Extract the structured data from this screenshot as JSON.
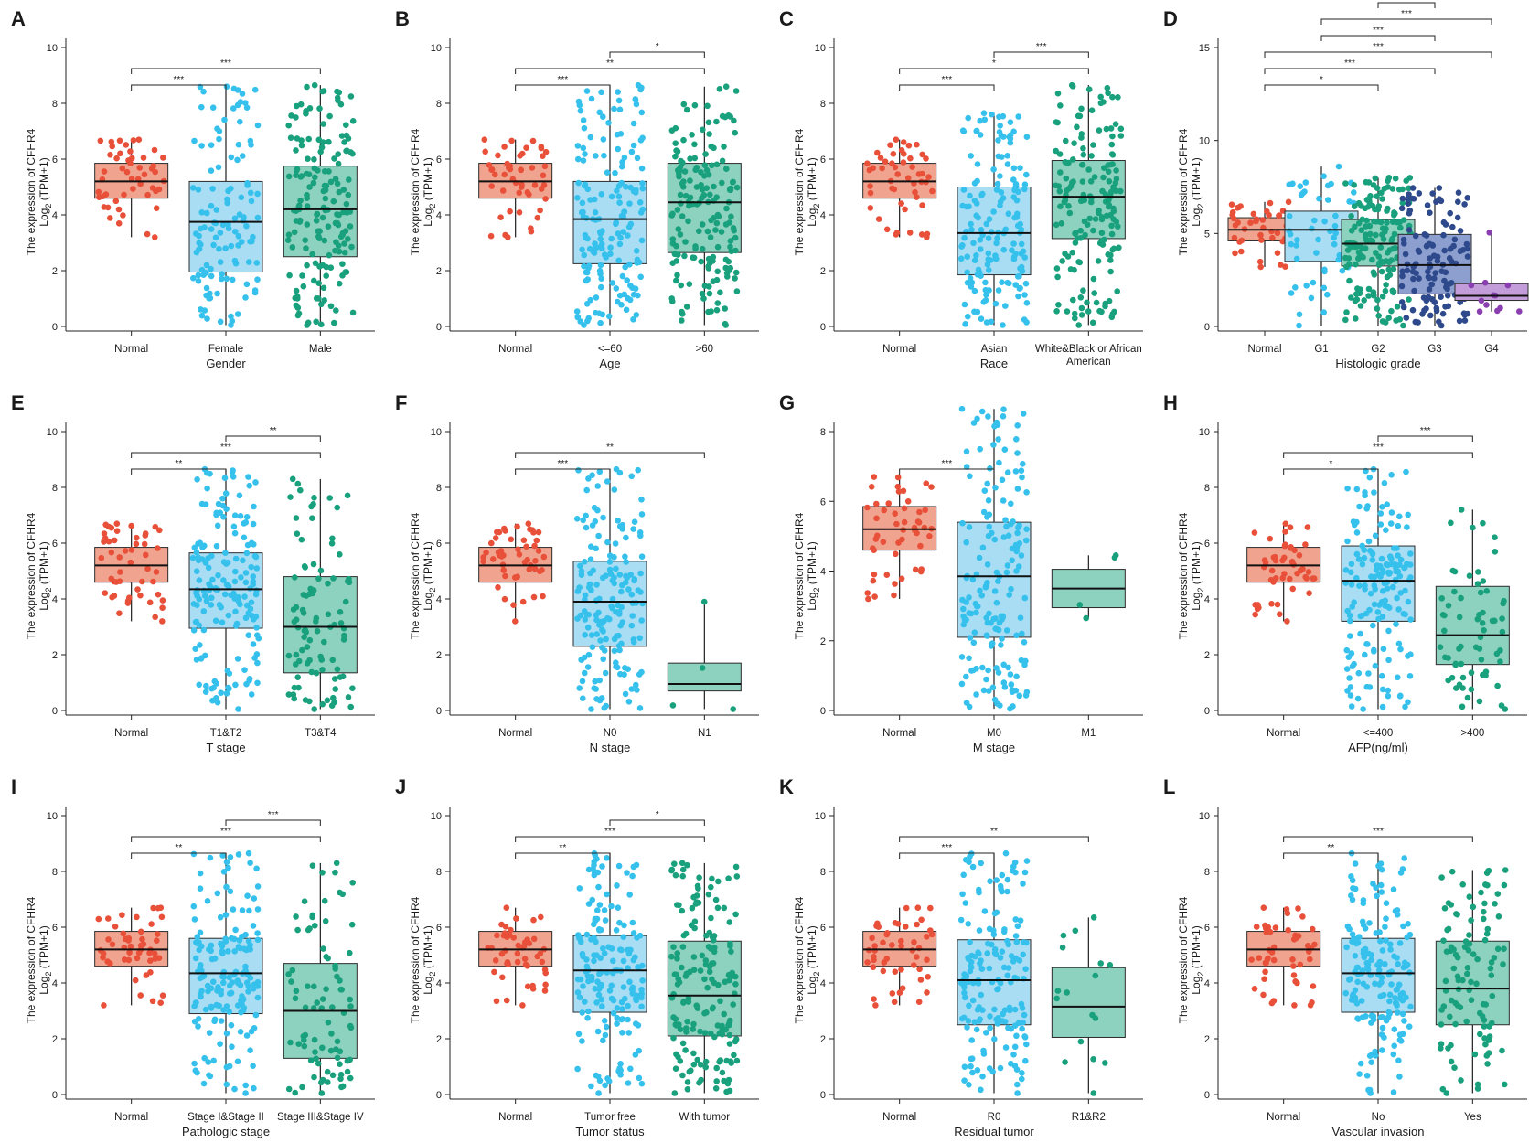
{
  "ylabel": {
    "line1": "The expression of CFHR4",
    "line2_prefix": "Log",
    "line2_sub": "2",
    "line2_suffix": " (TPM+1)"
  },
  "colors": {
    "Normal": "#e8503a",
    "Normal_box": "#f0a48f",
    "blue": "#36c1ec",
    "blue_box": "#a8ddf4",
    "green": "#19a07c",
    "green_box": "#8dd1bf",
    "navy": "#2e4a8c",
    "navy_box": "#8c9fcf",
    "purple": "#8a3fb0",
    "purple_box": "#c39dd9"
  },
  "chart_data": [
    {
      "panel": "A",
      "type": "box",
      "xlabel": "Gender",
      "ylim": [
        0,
        10
      ],
      "yticks": [
        0,
        2,
        4,
        6,
        8,
        10
      ],
      "groups": [
        {
          "name": "Normal",
          "color": "Normal",
          "n": 50,
          "min": 3.2,
          "q1": 4.6,
          "median": 5.2,
          "q3": 5.85,
          "max": 6.7
        },
        {
          "name": "Female",
          "color": "blue",
          "n": 120,
          "min": 0.05,
          "q1": 1.95,
          "median": 3.75,
          "q3": 5.2,
          "max": 8.6
        },
        {
          "name": "Male",
          "color": "green",
          "n": 250,
          "min": 0.05,
          "q1": 2.5,
          "median": 4.2,
          "q3": 5.75,
          "max": 8.65
        }
      ],
      "sig": [
        {
          "a": 0,
          "b": 1,
          "level": 0,
          "label": "***"
        },
        {
          "a": 0,
          "b": 2,
          "level": 1,
          "label": "***"
        }
      ]
    },
    {
      "panel": "B",
      "type": "box",
      "xlabel": "Age",
      "ylim": [
        0,
        10
      ],
      "yticks": [
        0,
        2,
        4,
        6,
        8,
        10
      ],
      "groups": [
        {
          "name": "Normal",
          "color": "Normal",
          "n": 50,
          "min": 3.2,
          "q1": 4.6,
          "median": 5.2,
          "q3": 5.85,
          "max": 6.7
        },
        {
          "name": "<=60",
          "color": "blue",
          "n": 190,
          "min": 0.05,
          "q1": 2.25,
          "median": 3.85,
          "q3": 5.2,
          "max": 8.65
        },
        {
          "name": ">60",
          "color": "green",
          "n": 180,
          "min": 0.05,
          "q1": 2.65,
          "median": 4.45,
          "q3": 5.85,
          "max": 8.6
        }
      ],
      "sig": [
        {
          "a": 0,
          "b": 1,
          "level": 0,
          "label": "***"
        },
        {
          "a": 0,
          "b": 2,
          "level": 1,
          "label": "**"
        },
        {
          "a": 1,
          "b": 2,
          "level": 2,
          "label": "*"
        }
      ]
    },
    {
      "panel": "C",
      "type": "box",
      "xlabel": "Race",
      "ylim": [
        0,
        10
      ],
      "yticks": [
        0,
        2,
        4,
        6,
        8,
        10
      ],
      "groups": [
        {
          "name": "Normal",
          "color": "Normal",
          "n": 50,
          "min": 3.2,
          "q1": 4.6,
          "median": 5.2,
          "q3": 5.85,
          "max": 6.7
        },
        {
          "name": "Asian",
          "color": "blue",
          "n": 160,
          "min": 0.05,
          "q1": 1.85,
          "median": 3.35,
          "q3": 5.0,
          "max": 7.65
        },
        {
          "name": "White&Black or African",
          "name2": "American",
          "color": "green",
          "n": 200,
          "min": 0.05,
          "q1": 3.15,
          "median": 4.65,
          "q3": 5.95,
          "max": 8.65
        }
      ],
      "sig": [
        {
          "a": 0,
          "b": 1,
          "level": 0,
          "label": "***"
        },
        {
          "a": 0,
          "b": 2,
          "level": 1,
          "label": "*"
        },
        {
          "a": 1,
          "b": 2,
          "level": 2,
          "label": "***"
        }
      ]
    },
    {
      "panel": "D",
      "type": "box",
      "xlabel": "Histologic grade",
      "ylim": [
        0,
        16
      ],
      "yticks": [
        0,
        5,
        10,
        15
      ],
      "groups": [
        {
          "name": "Normal",
          "color": "Normal",
          "n": 50,
          "min": 3.2,
          "q1": 4.6,
          "median": 5.2,
          "q3": 5.85,
          "max": 6.7
        },
        {
          "name": "G1",
          "color": "blue",
          "n": 55,
          "min": 0.05,
          "q1": 3.5,
          "median": 5.2,
          "q3": 6.2,
          "max": 8.6
        },
        {
          "name": "G2",
          "color": "green",
          "n": 175,
          "min": 0.05,
          "q1": 3.25,
          "median": 4.45,
          "q3": 5.75,
          "max": 8.0
        },
        {
          "name": "G3",
          "color": "navy",
          "n": 125,
          "min": 0.05,
          "q1": 1.75,
          "median": 3.3,
          "q3": 4.95,
          "max": 7.45
        },
        {
          "name": "G4",
          "color": "purple",
          "n": 12,
          "min": 0.8,
          "q1": 1.4,
          "median": 1.65,
          "q3": 2.3,
          "max": 5.05
        }
      ],
      "sig": [
        {
          "a": 0,
          "b": 2,
          "level": 0,
          "label": "*"
        },
        {
          "a": 0,
          "b": 3,
          "level": 1,
          "label": "***"
        },
        {
          "a": 0,
          "b": 4,
          "level": 2,
          "label": "***"
        },
        {
          "a": 1,
          "b": 3,
          "level": 3,
          "label": "***"
        },
        {
          "a": 1,
          "b": 4,
          "level": 4,
          "label": "***"
        },
        {
          "a": 2,
          "b": 3,
          "level": 5,
          "label": "**"
        },
        {
          "a": 2,
          "b": 4,
          "level": 6,
          "label": "***"
        }
      ]
    },
    {
      "panel": "E",
      "type": "box",
      "xlabel": "T stage",
      "ylim": [
        0,
        10
      ],
      "yticks": [
        0,
        2,
        4,
        6,
        8,
        10
      ],
      "groups": [
        {
          "name": "Normal",
          "color": "Normal",
          "n": 50,
          "min": 3.2,
          "q1": 4.6,
          "median": 5.2,
          "q3": 5.85,
          "max": 6.7
        },
        {
          "name": "T1&T2",
          "color": "blue",
          "n": 280,
          "min": 0.05,
          "q1": 2.95,
          "median": 4.35,
          "q3": 5.65,
          "max": 8.65
        },
        {
          "name": "T3&T4",
          "color": "green",
          "n": 95,
          "min": 0.05,
          "q1": 1.35,
          "median": 3.0,
          "q3": 4.8,
          "max": 8.3
        }
      ],
      "sig": [
        {
          "a": 0,
          "b": 1,
          "level": 0,
          "label": "**"
        },
        {
          "a": 0,
          "b": 2,
          "level": 1,
          "label": "***"
        },
        {
          "a": 1,
          "b": 2,
          "level": 2,
          "label": "**"
        }
      ]
    },
    {
      "panel": "F",
      "type": "box",
      "xlabel": "N stage",
      "ylim": [
        0,
        10
      ],
      "yticks": [
        0,
        2,
        4,
        6,
        8,
        10
      ],
      "groups": [
        {
          "name": "Normal",
          "color": "Normal",
          "n": 50,
          "min": 3.2,
          "q1": 4.6,
          "median": 5.2,
          "q3": 5.85,
          "max": 6.7
        },
        {
          "name": "N0",
          "color": "blue",
          "n": 255,
          "min": 0.05,
          "q1": 2.3,
          "median": 3.9,
          "q3": 5.35,
          "max": 8.65
        },
        {
          "name": "N1",
          "color": "green",
          "n": 4,
          "min": 0.05,
          "q1": 0.7,
          "median": 0.95,
          "q3": 1.7,
          "max": 3.9
        }
      ],
      "sig": [
        {
          "a": 0,
          "b": 1,
          "level": 0,
          "label": "***"
        },
        {
          "a": 0,
          "b": 2,
          "level": 1,
          "label": "**"
        }
      ]
    },
    {
      "panel": "G",
      "type": "box",
      "xlabel": "M stage",
      "ylim": [
        0,
        9
      ],
      "yticks": [
        0,
        2,
        4,
        6,
        8
      ],
      "groups": [
        {
          "name": "Normal",
          "color": "Normal",
          "n": 50,
          "min": 3.2,
          "q1": 4.6,
          "median": 5.2,
          "q3": 5.85,
          "max": 6.7
        },
        {
          "name": "M0",
          "color": "blue",
          "n": 265,
          "min": 0.05,
          "q1": 2.1,
          "median": 3.85,
          "q3": 5.4,
          "max": 8.65
        },
        {
          "name": "M1",
          "color": "green",
          "n": 4,
          "min": 2.65,
          "q1": 2.95,
          "median": 3.5,
          "q3": 4.05,
          "max": 4.45
        }
      ],
      "sig": [
        {
          "a": 0,
          "b": 1,
          "level": 0,
          "label": "***"
        }
      ]
    },
    {
      "panel": "H",
      "type": "box",
      "xlabel": "AFP(ng/ml)",
      "ylim": [
        0,
        10
      ],
      "yticks": [
        0,
        2,
        4,
        6,
        8,
        10
      ],
      "groups": [
        {
          "name": "Normal",
          "color": "Normal",
          "n": 50,
          "min": 3.2,
          "q1": 4.6,
          "median": 5.2,
          "q3": 5.85,
          "max": 6.7
        },
        {
          "name": "<=400",
          "color": "blue",
          "n": 215,
          "min": 0.05,
          "q1": 3.2,
          "median": 4.65,
          "q3": 5.9,
          "max": 8.65
        },
        {
          "name": ">400",
          "color": "green",
          "n": 65,
          "min": 0.05,
          "q1": 1.65,
          "median": 2.7,
          "q3": 4.45,
          "max": 7.2
        }
      ],
      "sig": [
        {
          "a": 0,
          "b": 1,
          "level": 0,
          "label": "*"
        },
        {
          "a": 0,
          "b": 2,
          "level": 1,
          "label": "***"
        },
        {
          "a": 1,
          "b": 2,
          "level": 2,
          "label": "***"
        }
      ]
    },
    {
      "panel": "I",
      "type": "box",
      "xlabel": "Pathologic stage",
      "ylim": [
        0,
        10
      ],
      "yticks": [
        0,
        2,
        4,
        6,
        8,
        10
      ],
      "groups": [
        {
          "name": "Normal",
          "color": "Normal",
          "n": 50,
          "min": 3.2,
          "q1": 4.6,
          "median": 5.2,
          "q3": 5.85,
          "max": 6.7
        },
        {
          "name": "Stage I&Stage II",
          "color": "blue",
          "n": 255,
          "min": 0.05,
          "q1": 2.9,
          "median": 4.35,
          "q3": 5.6,
          "max": 8.65
        },
        {
          "name": "Stage III&Stage IV",
          "color": "green",
          "n": 85,
          "min": 0.05,
          "q1": 1.3,
          "median": 3.0,
          "q3": 4.7,
          "max": 8.3
        }
      ],
      "sig": [
        {
          "a": 0,
          "b": 1,
          "level": 0,
          "label": "**"
        },
        {
          "a": 0,
          "b": 2,
          "level": 1,
          "label": "***"
        },
        {
          "a": 1,
          "b": 2,
          "level": 2,
          "label": "***"
        }
      ]
    },
    {
      "panel": "J",
      "type": "box",
      "xlabel": "Tumor status",
      "ylim": [
        0,
        10
      ],
      "yticks": [
        0,
        2,
        4,
        6,
        8,
        10
      ],
      "groups": [
        {
          "name": "Normal",
          "color": "Normal",
          "n": 50,
          "min": 3.2,
          "q1": 4.6,
          "median": 5.2,
          "q3": 5.85,
          "max": 6.7
        },
        {
          "name": "Tumor free",
          "color": "blue",
          "n": 200,
          "min": 0.05,
          "q1": 2.95,
          "median": 4.45,
          "q3": 5.7,
          "max": 8.65
        },
        {
          "name": "With tumor",
          "color": "green",
          "n": 170,
          "min": 0.05,
          "q1": 2.1,
          "median": 3.55,
          "q3": 5.5,
          "max": 8.3
        }
      ],
      "sig": [
        {
          "a": 0,
          "b": 1,
          "level": 0,
          "label": "**"
        },
        {
          "a": 0,
          "b": 2,
          "level": 1,
          "label": "***"
        },
        {
          "a": 1,
          "b": 2,
          "level": 2,
          "label": "*"
        }
      ]
    },
    {
      "panel": "K",
      "type": "box",
      "xlabel": "Residual tumor",
      "ylim": [
        0,
        10
      ],
      "yticks": [
        0,
        2,
        4,
        6,
        8,
        10
      ],
      "groups": [
        {
          "name": "Normal",
          "color": "Normal",
          "n": 50,
          "min": 3.2,
          "q1": 4.6,
          "median": 5.2,
          "q3": 5.85,
          "max": 6.7
        },
        {
          "name": "R0",
          "color": "blue",
          "n": 330,
          "min": 0.05,
          "q1": 2.5,
          "median": 4.1,
          "q3": 5.55,
          "max": 8.65
        },
        {
          "name": "R1&R2",
          "color": "green",
          "n": 17,
          "min": 0.05,
          "q1": 2.05,
          "median": 3.15,
          "q3": 4.55,
          "max": 6.35
        }
      ],
      "sig": [
        {
          "a": 0,
          "b": 1,
          "level": 0,
          "label": "***"
        },
        {
          "a": 0,
          "b": 2,
          "level": 1,
          "label": "**"
        }
      ]
    },
    {
      "panel": "L",
      "type": "box",
      "xlabel": "Vascular invasion",
      "ylim": [
        0,
        10
      ],
      "yticks": [
        0,
        2,
        4,
        6,
        8,
        10
      ],
      "groups": [
        {
          "name": "Normal",
          "color": "Normal",
          "n": 50,
          "min": 3.2,
          "q1": 4.6,
          "median": 5.2,
          "q3": 5.85,
          "max": 6.7
        },
        {
          "name": "No",
          "color": "blue",
          "n": 205,
          "min": 0.05,
          "q1": 2.95,
          "median": 4.35,
          "q3": 5.6,
          "max": 8.65
        },
        {
          "name": "Yes",
          "color": "green",
          "n": 105,
          "min": 0.05,
          "q1": 2.5,
          "median": 3.8,
          "q3": 5.5,
          "max": 8.05
        }
      ],
      "sig": [
        {
          "a": 0,
          "b": 1,
          "level": 0,
          "label": "**"
        },
        {
          "a": 0,
          "b": 2,
          "level": 1,
          "label": "***"
        }
      ]
    }
  ]
}
